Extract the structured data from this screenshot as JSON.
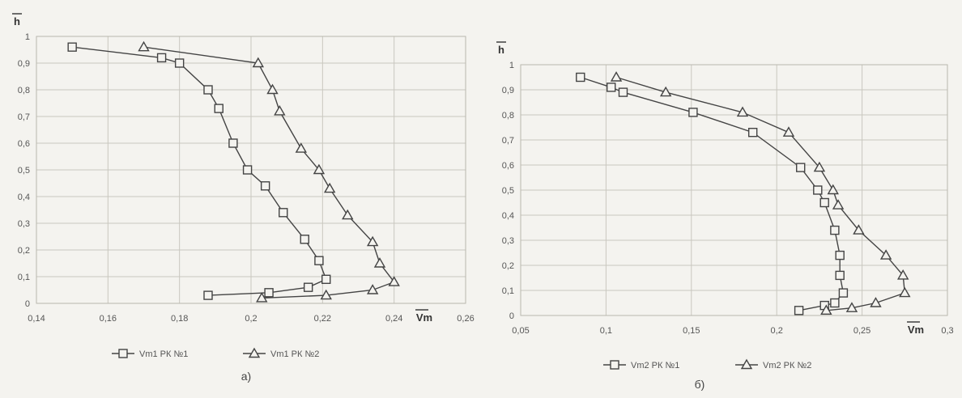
{
  "chart_data": [
    {
      "type": "line",
      "ylabel": "h",
      "xlabel": "Vm",
      "xlim": [
        0.14,
        0.26
      ],
      "ylim": [
        0,
        1
      ],
      "x_ticks": [
        "0,14",
        "0,16",
        "0,18",
        "0,2",
        "0,22",
        "0,24",
        "0,26"
      ],
      "y_ticks": [
        "0",
        "0,1",
        "0,2",
        "0,3",
        "0,4",
        "0,5",
        "0,6",
        "0,7",
        "0,8",
        "0,9",
        "1"
      ],
      "grid": true,
      "legend_position": "bottom",
      "caption": "а)",
      "series": [
        {
          "name": "Vm1 РК №1",
          "marker": "square",
          "points": [
            [
              0.188,
              0.03
            ],
            [
              0.205,
              0.04
            ],
            [
              0.216,
              0.06
            ],
            [
              0.221,
              0.09
            ],
            [
              0.219,
              0.16
            ],
            [
              0.215,
              0.24
            ],
            [
              0.209,
              0.34
            ],
            [
              0.204,
              0.44
            ],
            [
              0.199,
              0.5
            ],
            [
              0.195,
              0.6
            ],
            [
              0.191,
              0.73
            ],
            [
              0.188,
              0.8
            ],
            [
              0.18,
              0.9
            ],
            [
              0.175,
              0.92
            ],
            [
              0.15,
              0.96
            ]
          ]
        },
        {
          "name": "Vm1 РК №2",
          "marker": "triangle",
          "points": [
            [
              0.203,
              0.02
            ],
            [
              0.221,
              0.03
            ],
            [
              0.234,
              0.05
            ],
            [
              0.24,
              0.08
            ],
            [
              0.236,
              0.15
            ],
            [
              0.234,
              0.23
            ],
            [
              0.227,
              0.33
            ],
            [
              0.222,
              0.43
            ],
            [
              0.219,
              0.5
            ],
            [
              0.214,
              0.58
            ],
            [
              0.208,
              0.72
            ],
            [
              0.206,
              0.8
            ],
            [
              0.202,
              0.9
            ],
            [
              0.17,
              0.96
            ]
          ]
        }
      ]
    },
    {
      "type": "line",
      "ylabel": "h",
      "xlabel": "Vm",
      "xlim": [
        0.05,
        0.3
      ],
      "ylim": [
        0,
        1
      ],
      "x_ticks": [
        "0,05",
        "0,1",
        "0,15",
        "0,2",
        "0,25",
        "0,3"
      ],
      "y_ticks": [
        "0",
        "0,1",
        "0,2",
        "0,3",
        "0,4",
        "0,5",
        "0,6",
        "0,7",
        "0,8",
        "0,9",
        "1"
      ],
      "grid": true,
      "legend_position": "bottom",
      "caption": "б)",
      "series": [
        {
          "name": "Vm2 РК №1",
          "marker": "square",
          "points": [
            [
              0.213,
              0.02
            ],
            [
              0.228,
              0.04
            ],
            [
              0.234,
              0.05
            ],
            [
              0.239,
              0.09
            ],
            [
              0.237,
              0.16
            ],
            [
              0.237,
              0.24
            ],
            [
              0.234,
              0.34
            ],
            [
              0.228,
              0.45
            ],
            [
              0.224,
              0.5
            ],
            [
              0.214,
              0.59
            ],
            [
              0.186,
              0.73
            ],
            [
              0.151,
              0.81
            ],
            [
              0.11,
              0.89
            ],
            [
              0.103,
              0.91
            ],
            [
              0.085,
              0.95
            ]
          ]
        },
        {
          "name": "Vm2 РК №2",
          "marker": "triangle",
          "points": [
            [
              0.229,
              0.02
            ],
            [
              0.244,
              0.03
            ],
            [
              0.258,
              0.05
            ],
            [
              0.275,
              0.09
            ],
            [
              0.274,
              0.16
            ],
            [
              0.264,
              0.24
            ],
            [
              0.248,
              0.34
            ],
            [
              0.236,
              0.44
            ],
            [
              0.233,
              0.5
            ],
            [
              0.225,
              0.59
            ],
            [
              0.207,
              0.73
            ],
            [
              0.18,
              0.81
            ],
            [
              0.135,
              0.89
            ],
            [
              0.106,
              0.95
            ]
          ]
        }
      ]
    }
  ]
}
